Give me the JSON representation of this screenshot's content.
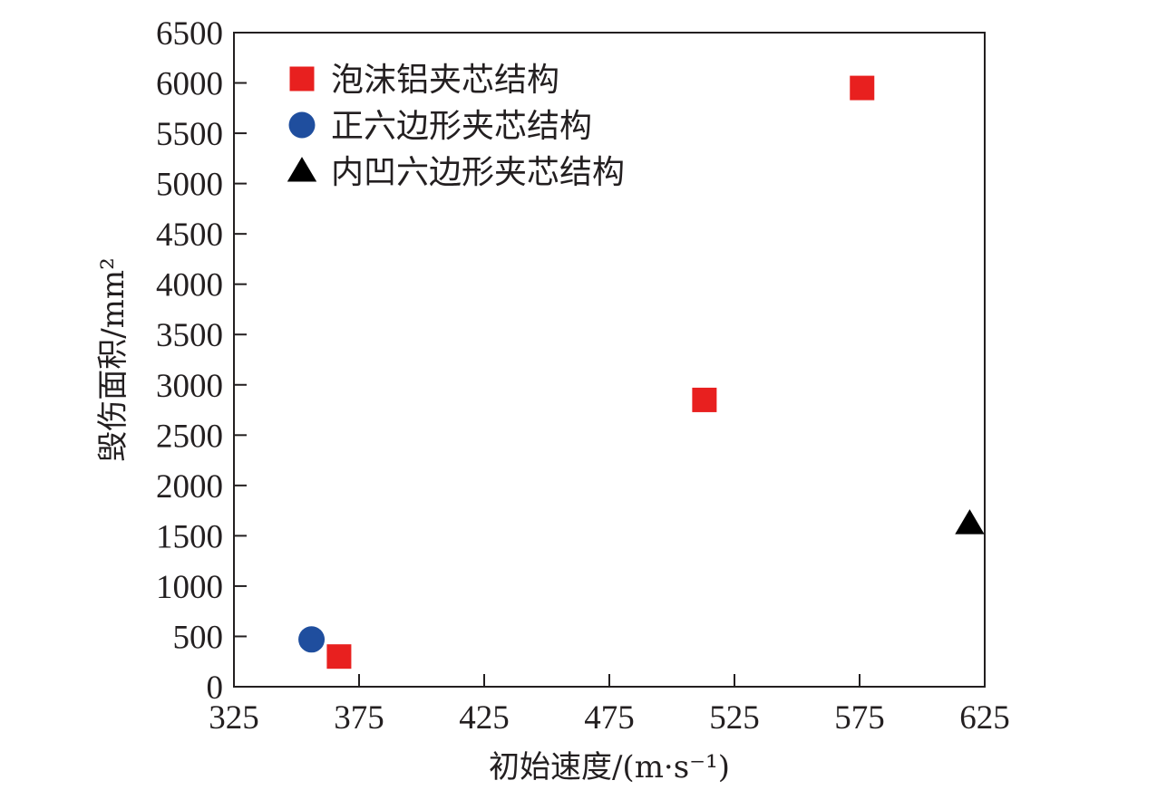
{
  "chart_data": {
    "type": "scatter",
    "xlabel": "初始速度/(m·s⁻¹)",
    "ylabel": "毁伤面积/mm²",
    "xlim": [
      325,
      625
    ],
    "ylim": [
      0,
      6500
    ],
    "xticks": [
      325,
      375,
      425,
      475,
      525,
      575,
      625
    ],
    "yticks": [
      0,
      500,
      1000,
      1500,
      2000,
      2500,
      3000,
      3500,
      4000,
      4500,
      5000,
      5500,
      6000,
      6500
    ],
    "legend_position": "top-left",
    "grid": false,
    "series": [
      {
        "name": "泡沫铝夹芯结构",
        "marker": "square",
        "color": "#e8201f",
        "points": [
          {
            "x": 367,
            "y": 300
          },
          {
            "x": 513,
            "y": 2850
          },
          {
            "x": 576,
            "y": 5950
          }
        ]
      },
      {
        "name": "正六边形夹芯结构",
        "marker": "circle",
        "color": "#1f4e9e",
        "points": [
          {
            "x": 356,
            "y": 470
          }
        ]
      },
      {
        "name": "内凹六边形夹芯结构",
        "marker": "triangle",
        "color": "#000000",
        "points": [
          {
            "x": 619,
            "y": 1620
          }
        ]
      }
    ]
  }
}
